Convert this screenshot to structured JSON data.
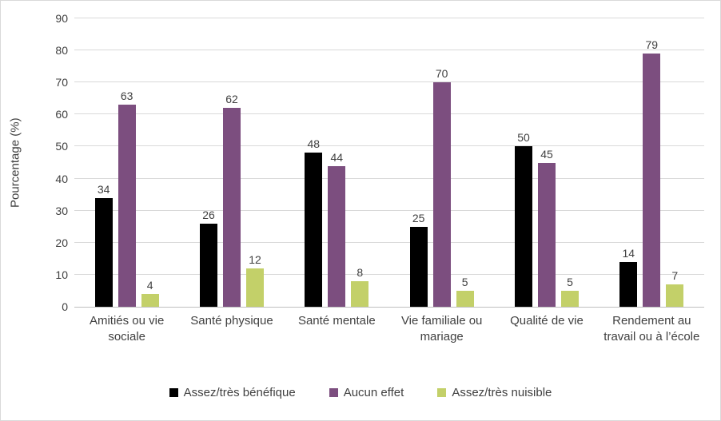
{
  "chart_data": {
    "type": "bar",
    "title": "",
    "xlabel": "",
    "ylabel": "Pourcentage (%)",
    "ylim": [
      0,
      90
    ],
    "yticks": [
      0,
      10,
      20,
      30,
      40,
      50,
      60,
      70,
      80,
      90
    ],
    "grid": true,
    "legend_position": "bottom",
    "categories": [
      "Amitiés ou vie sociale",
      "Santé physique",
      "Santé mentale",
      "Vie familiale ou mariage",
      "Qualité de vie",
      "Rendement au travail ou à l’école"
    ],
    "series": [
      {
        "name": "Assez/très bénéfique",
        "color": "#000000",
        "values": [
          34,
          26,
          48,
          25,
          50,
          14
        ]
      },
      {
        "name": "Aucun effet",
        "color": "#7c4e7f",
        "values": [
          63,
          62,
          44,
          70,
          45,
          79
        ]
      },
      {
        "name": "Assez/très nuisible",
        "color": "#c3d069",
        "values": [
          4,
          12,
          8,
          5,
          5,
          7
        ]
      }
    ]
  },
  "colors": {
    "gridline": "#d9d9d9",
    "axis_line": "#bfbfbf",
    "text": "#404040",
    "chart_border": "#d9d9d9"
  }
}
